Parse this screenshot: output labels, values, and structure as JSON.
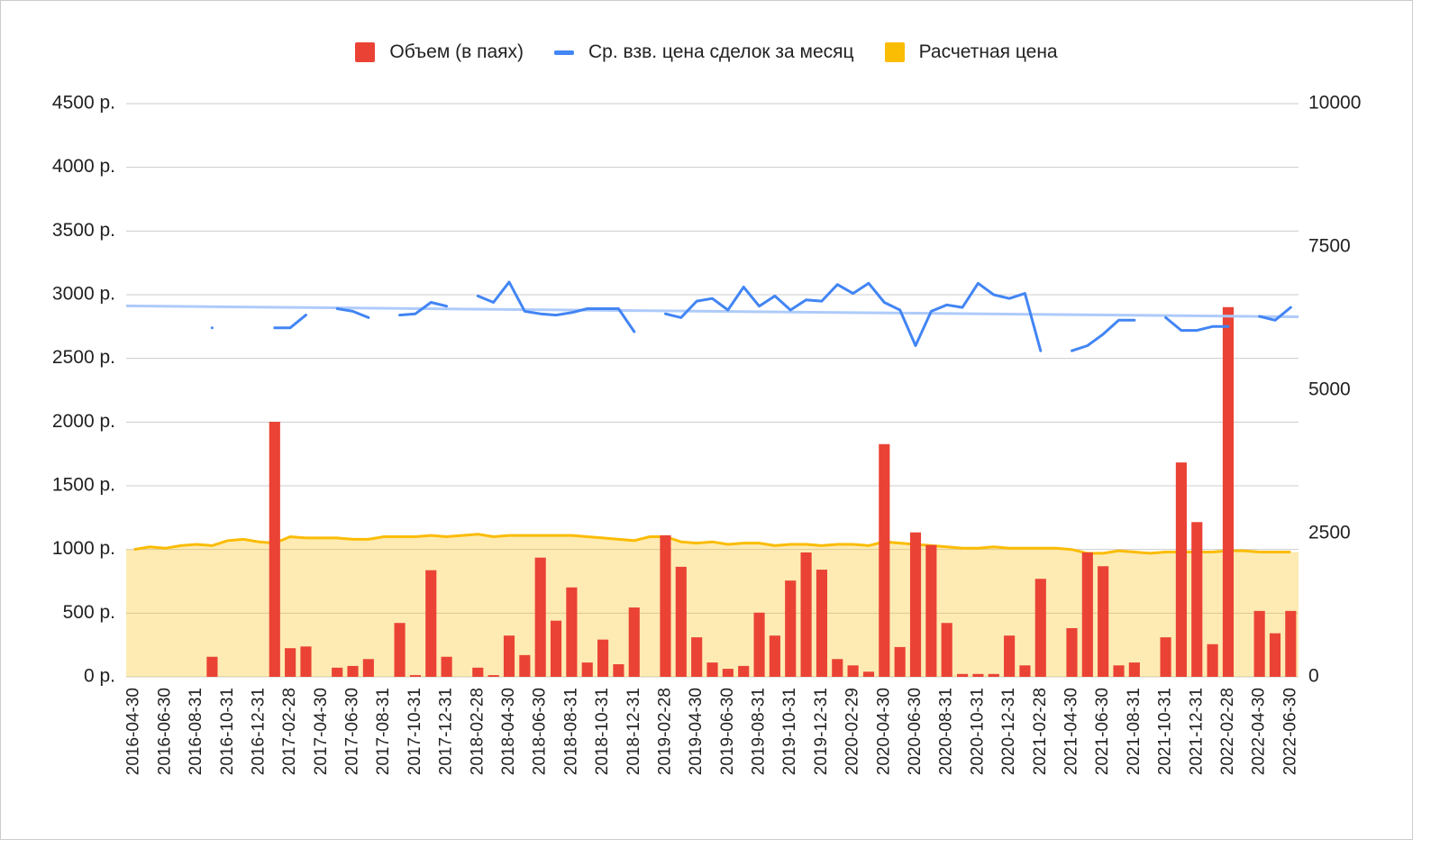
{
  "chart_data": {
    "type": "combo",
    "categories": [
      "2016-04-30",
      null,
      "2016-06-30",
      null,
      "2016-08-31",
      null,
      "2016-10-31",
      null,
      "2016-12-31",
      null,
      "2017-02-28",
      null,
      "2017-04-30",
      null,
      "2017-06-30",
      null,
      "2017-08-31",
      null,
      "2017-10-31",
      null,
      "2017-12-31",
      null,
      "2018-02-28",
      null,
      "2018-04-30",
      null,
      "2018-06-30",
      null,
      "2018-08-31",
      null,
      "2018-10-31",
      null,
      "2018-12-31",
      null,
      "2019-02-28",
      null,
      "2019-04-30",
      null,
      "2019-06-30",
      null,
      "2019-08-31",
      null,
      "2019-10-31",
      null,
      "2019-12-31",
      null,
      "2020-02-29",
      null,
      "2020-04-30",
      null,
      "2020-06-30",
      null,
      "2020-08-31",
      null,
      "2020-10-31",
      null,
      "2020-12-31",
      null,
      "2021-02-28",
      null,
      "2021-04-30",
      null,
      "2021-06-30",
      null,
      "2021-08-31",
      null,
      "2021-10-31",
      null,
      "2021-12-31",
      null,
      "2022-02-28",
      null,
      "2022-04-30",
      null,
      "2022-06-30"
    ],
    "series": [
      {
        "name": "Объем (в паях)",
        "type": "bar",
        "axis": "y2",
        "color": "#ea4335",
        "values": [
          0,
          0,
          0,
          0,
          0,
          350,
          0,
          0,
          0,
          4450,
          500,
          530,
          0,
          160,
          190,
          310,
          0,
          940,
          30,
          1860,
          350,
          0,
          160,
          30,
          720,
          380,
          2080,
          980,
          1560,
          250,
          650,
          220,
          1210,
          0,
          2470,
          1920,
          690,
          250,
          140,
          190,
          1120,
          720,
          1680,
          2170,
          1870,
          310,
          200,
          90,
          4060,
          520,
          2520,
          2300,
          940,
          50,
          50,
          50,
          720,
          200,
          1710,
          0,
          850,
          2170,
          1930,
          200,
          250,
          0,
          690,
          3740,
          2700,
          570,
          6450,
          0,
          1150,
          760,
          1150
        ]
      },
      {
        "name": "Ср. взв. цена сделок за месяц",
        "type": "line",
        "color": "#4285f4",
        "trendline": true,
        "trendline_color": "#aecbfa",
        "values": [
          null,
          null,
          null,
          null,
          null,
          2740,
          null,
          null,
          null,
          2740,
          2740,
          2840,
          null,
          2890,
          2870,
          2820,
          null,
          2840,
          2850,
          2940,
          2910,
          null,
          2990,
          2940,
          3100,
          2870,
          2850,
          2840,
          2860,
          2890,
          2890,
          2890,
          2710,
          null,
          2850,
          2820,
          2950,
          2970,
          2880,
          3060,
          2910,
          2990,
          2880,
          2960,
          2950,
          3080,
          3010,
          3090,
          2940,
          2880,
          2600,
          2870,
          2920,
          2900,
          3090,
          3000,
          2970,
          3010,
          2560,
          null,
          2560,
          2600,
          2690,
          2800,
          2800,
          null,
          2820,
          2720,
          2720,
          2750,
          2750,
          null,
          2830,
          2800,
          2900
        ]
      },
      {
        "name": "Расчетная цена",
        "type": "area",
        "color": "#fbbc04",
        "values": [
          1000,
          1020,
          1010,
          1030,
          1040,
          1030,
          1070,
          1080,
          1060,
          1050,
          1100,
          1090,
          1090,
          1090,
          1080,
          1080,
          1100,
          1100,
          1100,
          1110,
          1100,
          1110,
          1120,
          1100,
          1110,
          1110,
          1110,
          1110,
          1110,
          1100,
          1090,
          1080,
          1070,
          1100,
          1100,
          1060,
          1050,
          1060,
          1040,
          1050,
          1050,
          1030,
          1040,
          1040,
          1030,
          1040,
          1040,
          1030,
          1060,
          1050,
          1040,
          1030,
          1020,
          1010,
          1010,
          1020,
          1010,
          1010,
          1010,
          1010,
          1000,
          970,
          970,
          990,
          980,
          970,
          980,
          980,
          980,
          980,
          990,
          990,
          980,
          980,
          980
        ]
      }
    ],
    "ylim": [
      0,
      4500
    ],
    "yticks": [
      {
        "value": 0,
        "label": "0 р."
      },
      {
        "value": 500,
        "label": "500 р."
      },
      {
        "value": 1000,
        "label": "1000 р."
      },
      {
        "value": 1500,
        "label": "1500 р."
      },
      {
        "value": 2000,
        "label": "2000 р."
      },
      {
        "value": 2500,
        "label": "2500 р."
      },
      {
        "value": 3000,
        "label": "3000 р."
      },
      {
        "value": 3500,
        "label": "3500 р."
      },
      {
        "value": 4000,
        "label": "4000 р."
      },
      {
        "value": 4500,
        "label": "4500 р."
      }
    ],
    "y2lim": [
      0,
      10000
    ],
    "y2ticks": [
      0,
      2500,
      5000,
      7500,
      10000
    ],
    "grid": true,
    "legend": "top"
  }
}
